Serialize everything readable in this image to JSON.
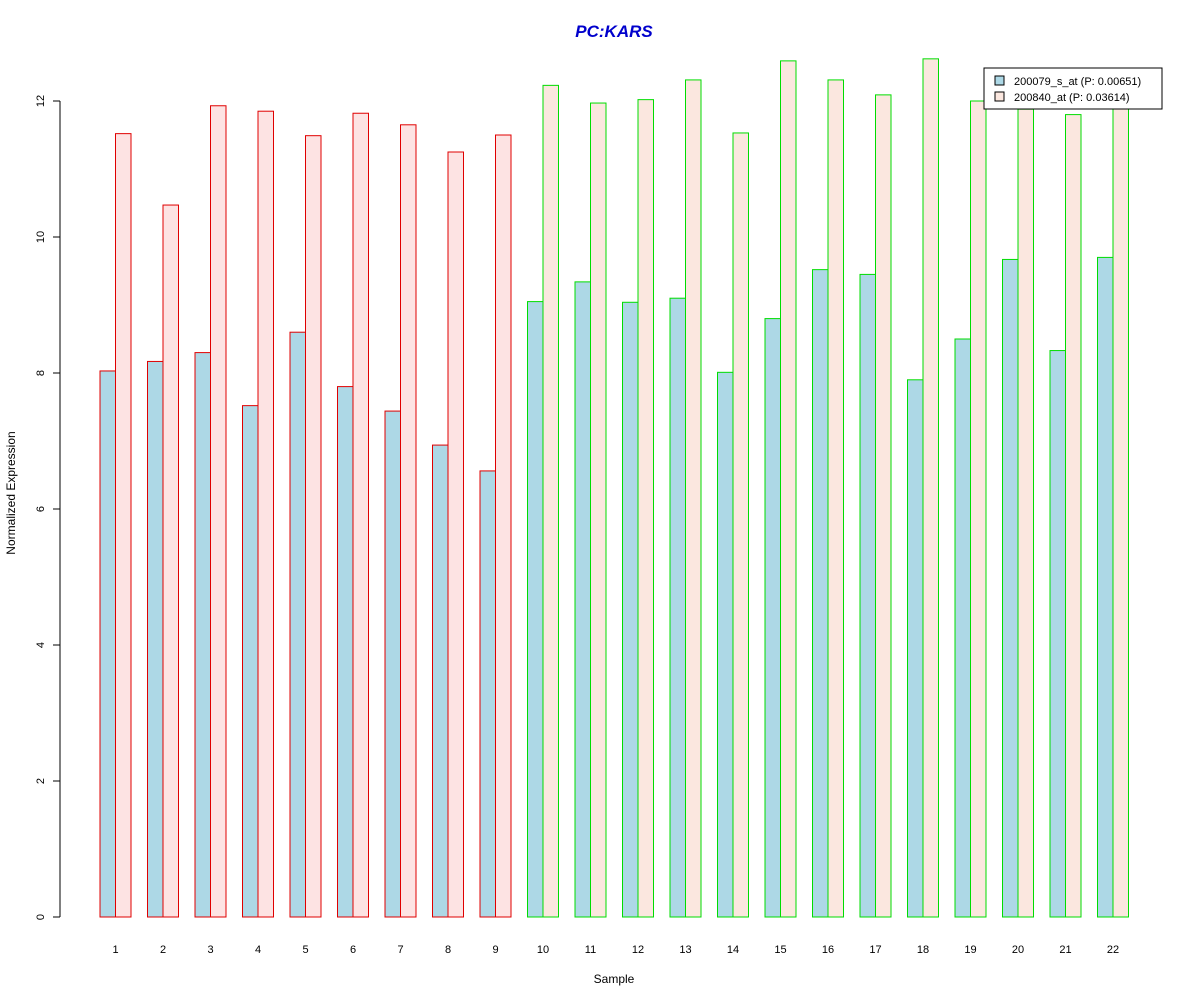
{
  "chart_data": {
    "type": "bar",
    "title": "PC:KARS",
    "xlabel": "Sample",
    "ylabel": "Normalized Expression",
    "ylim": [
      0,
      12.5
    ],
    "yticks": [
      "0",
      "2",
      "4",
      "6",
      "8",
      "10",
      "12"
    ],
    "grid": false,
    "legend_position": "top-right",
    "categories": [
      "1",
      "2",
      "3",
      "4",
      "5",
      "6",
      "7",
      "8",
      "9",
      "10",
      "11",
      "12",
      "13",
      "14",
      "15",
      "16",
      "17",
      "18",
      "19",
      "20",
      "21",
      "22"
    ],
    "series": [
      {
        "name": "200079_s_at (P: 0.00651)",
        "fill": "#add8e6",
        "values": [
          8.03,
          8.17,
          8.3,
          7.52,
          8.6,
          7.8,
          7.44,
          6.94,
          6.56,
          9.05,
          9.34,
          9.04,
          9.1,
          8.01,
          8.8,
          9.52,
          9.45,
          7.9,
          8.5,
          9.67,
          8.33,
          9.7
        ]
      },
      {
        "name": "200840_at (P: 0.03614)",
        "fill_group_a": "#fde3e3",
        "fill_group_b": "#fbe7df",
        "values": [
          11.52,
          10.47,
          11.93,
          11.85,
          11.49,
          11.82,
          11.65,
          11.25,
          11.5,
          12.23,
          11.97,
          12.02,
          12.31,
          11.53,
          12.59,
          12.31,
          12.09,
          12.62,
          12.0,
          11.88,
          11.8,
          11.9
        ]
      }
    ],
    "groups": [
      {
        "samples": [
          "1",
          "2",
          "3",
          "4",
          "5",
          "6",
          "7",
          "8",
          "9"
        ],
        "border": "#e00000"
      },
      {
        "samples": [
          "10",
          "11",
          "12",
          "13",
          "14",
          "15",
          "16",
          "17",
          "18",
          "19",
          "20",
          "21",
          "22"
        ],
        "border": "#00dd00"
      }
    ],
    "colors": {
      "title": "#0000cc",
      "axis": "#000000"
    }
  }
}
